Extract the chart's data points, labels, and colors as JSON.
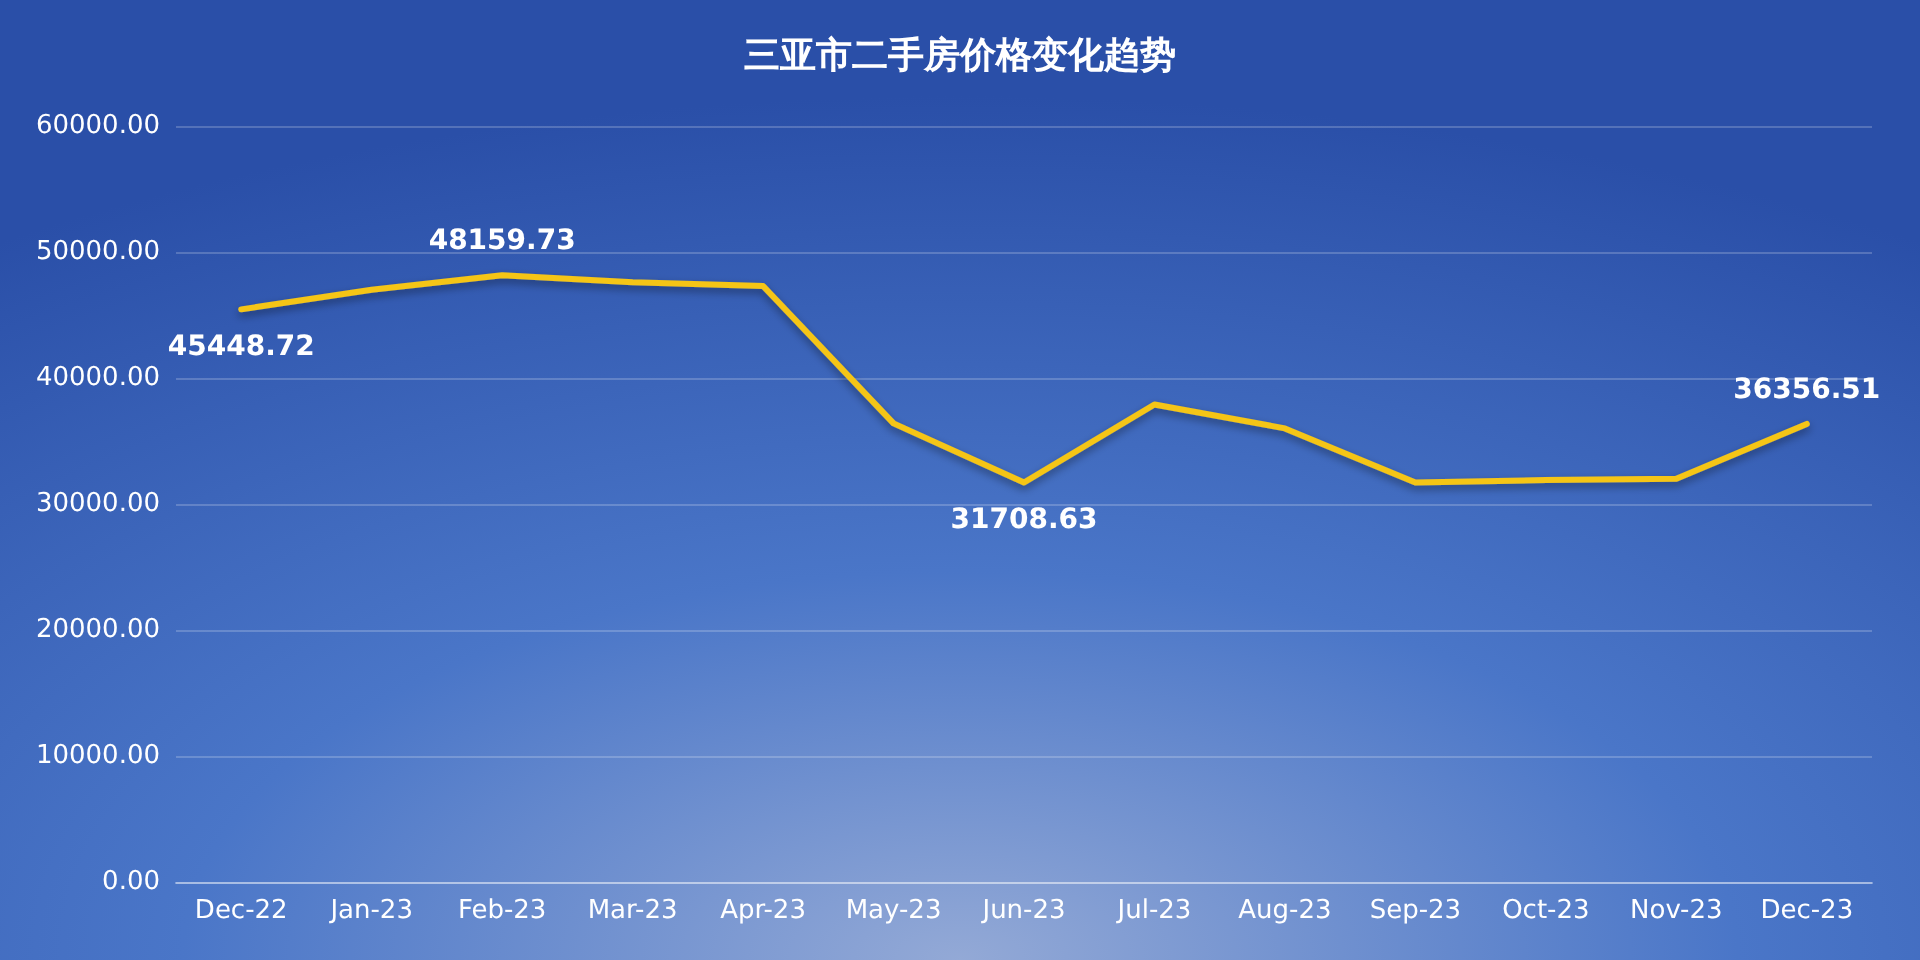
{
  "chart_data": {
    "type": "line",
    "title": "三亚市二手房价格变化趋势",
    "categories": [
      "Dec-22",
      "Jan-23",
      "Feb-23",
      "Mar-23",
      "Apr-23",
      "May-23",
      "Jun-23",
      "Jul-23",
      "Aug-23",
      "Sep-23",
      "Oct-23",
      "Nov-23",
      "Dec-23"
    ],
    "series": [
      {
        "color": "#f5c518",
        "values": [
          45448.72,
          47000,
          48159.73,
          47600,
          47300,
          36400,
          31708.63,
          37900,
          36000,
          31700,
          31900,
          32000,
          36356.51
        ],
        "value_labels": [
          "45448.72",
          null,
          "48159.73",
          null,
          null,
          null,
          "31708.63",
          null,
          null,
          null,
          null,
          null,
          "36356.51"
        ]
      }
    ],
    "ylim": [
      0,
      60000
    ],
    "yticks": [
      {
        "value": 0,
        "label": "0.00"
      },
      {
        "value": 10000,
        "label": "10000.00"
      },
      {
        "value": 20000,
        "label": "20000.00"
      },
      {
        "value": 30000,
        "label": "30000.00"
      },
      {
        "value": 40000,
        "label": "40000.00"
      },
      {
        "value": 50000,
        "label": "50000.00"
      },
      {
        "value": 60000,
        "label": "60000.00"
      }
    ],
    "grid": "y",
    "marker": "none",
    "line_style": "solid"
  }
}
